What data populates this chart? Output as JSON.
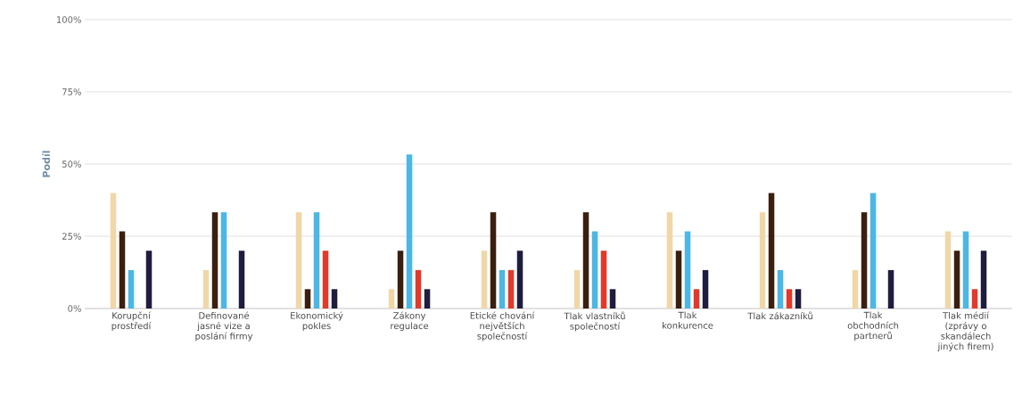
{
  "chart_data": {
    "type": "bar",
    "ylabel": "Podíl",
    "categories": [
      "Korupční prostředí",
      "Definované jasné vize a poslání firmy",
      "Ekonomický pokles",
      "Zákony regulace",
      "Etické chování největších společností",
      "Tlak vlastníků společností",
      "Tlak konkurence",
      "Tlak zákazníků",
      "Tlak obchodních partnerů",
      "Tlak médií (zprávy o skandálech jiných firem)"
    ],
    "series": [
      {
        "color": "#f0d7a8",
        "values": [
          40,
          13.3,
          33.3,
          6.7,
          20,
          13.3,
          33.3,
          33.3,
          13.3,
          26.7
        ]
      },
      {
        "color": "#3a1f10",
        "values": [
          26.7,
          33.3,
          6.7,
          20,
          33.3,
          33.3,
          20,
          40,
          33.3,
          20
        ]
      },
      {
        "color": "#4cb7e5",
        "values": [
          13.3,
          33.3,
          33.3,
          53.3,
          13.3,
          26.7,
          26.7,
          13.3,
          40,
          26.7
        ]
      },
      {
        "color": "#e2392a",
        "values": [
          0,
          0,
          20,
          13.3,
          13.3,
          20,
          6.7,
          6.7,
          0,
          6.7
        ]
      },
      {
        "color": "#1f1d3d",
        "values": [
          20,
          20,
          6.7,
          6.7,
          20,
          6.7,
          13.3,
          6.7,
          13.3,
          20
        ]
      }
    ],
    "ylim": [
      0,
      100
    ],
    "yticks": [
      {
        "value": 0,
        "label": "0%"
      },
      {
        "value": 25,
        "label": "25%"
      },
      {
        "value": 50,
        "label": "50%"
      },
      {
        "value": 75,
        "label": "75%"
      },
      {
        "value": 100,
        "label": "100%"
      }
    ],
    "grid": "y"
  }
}
